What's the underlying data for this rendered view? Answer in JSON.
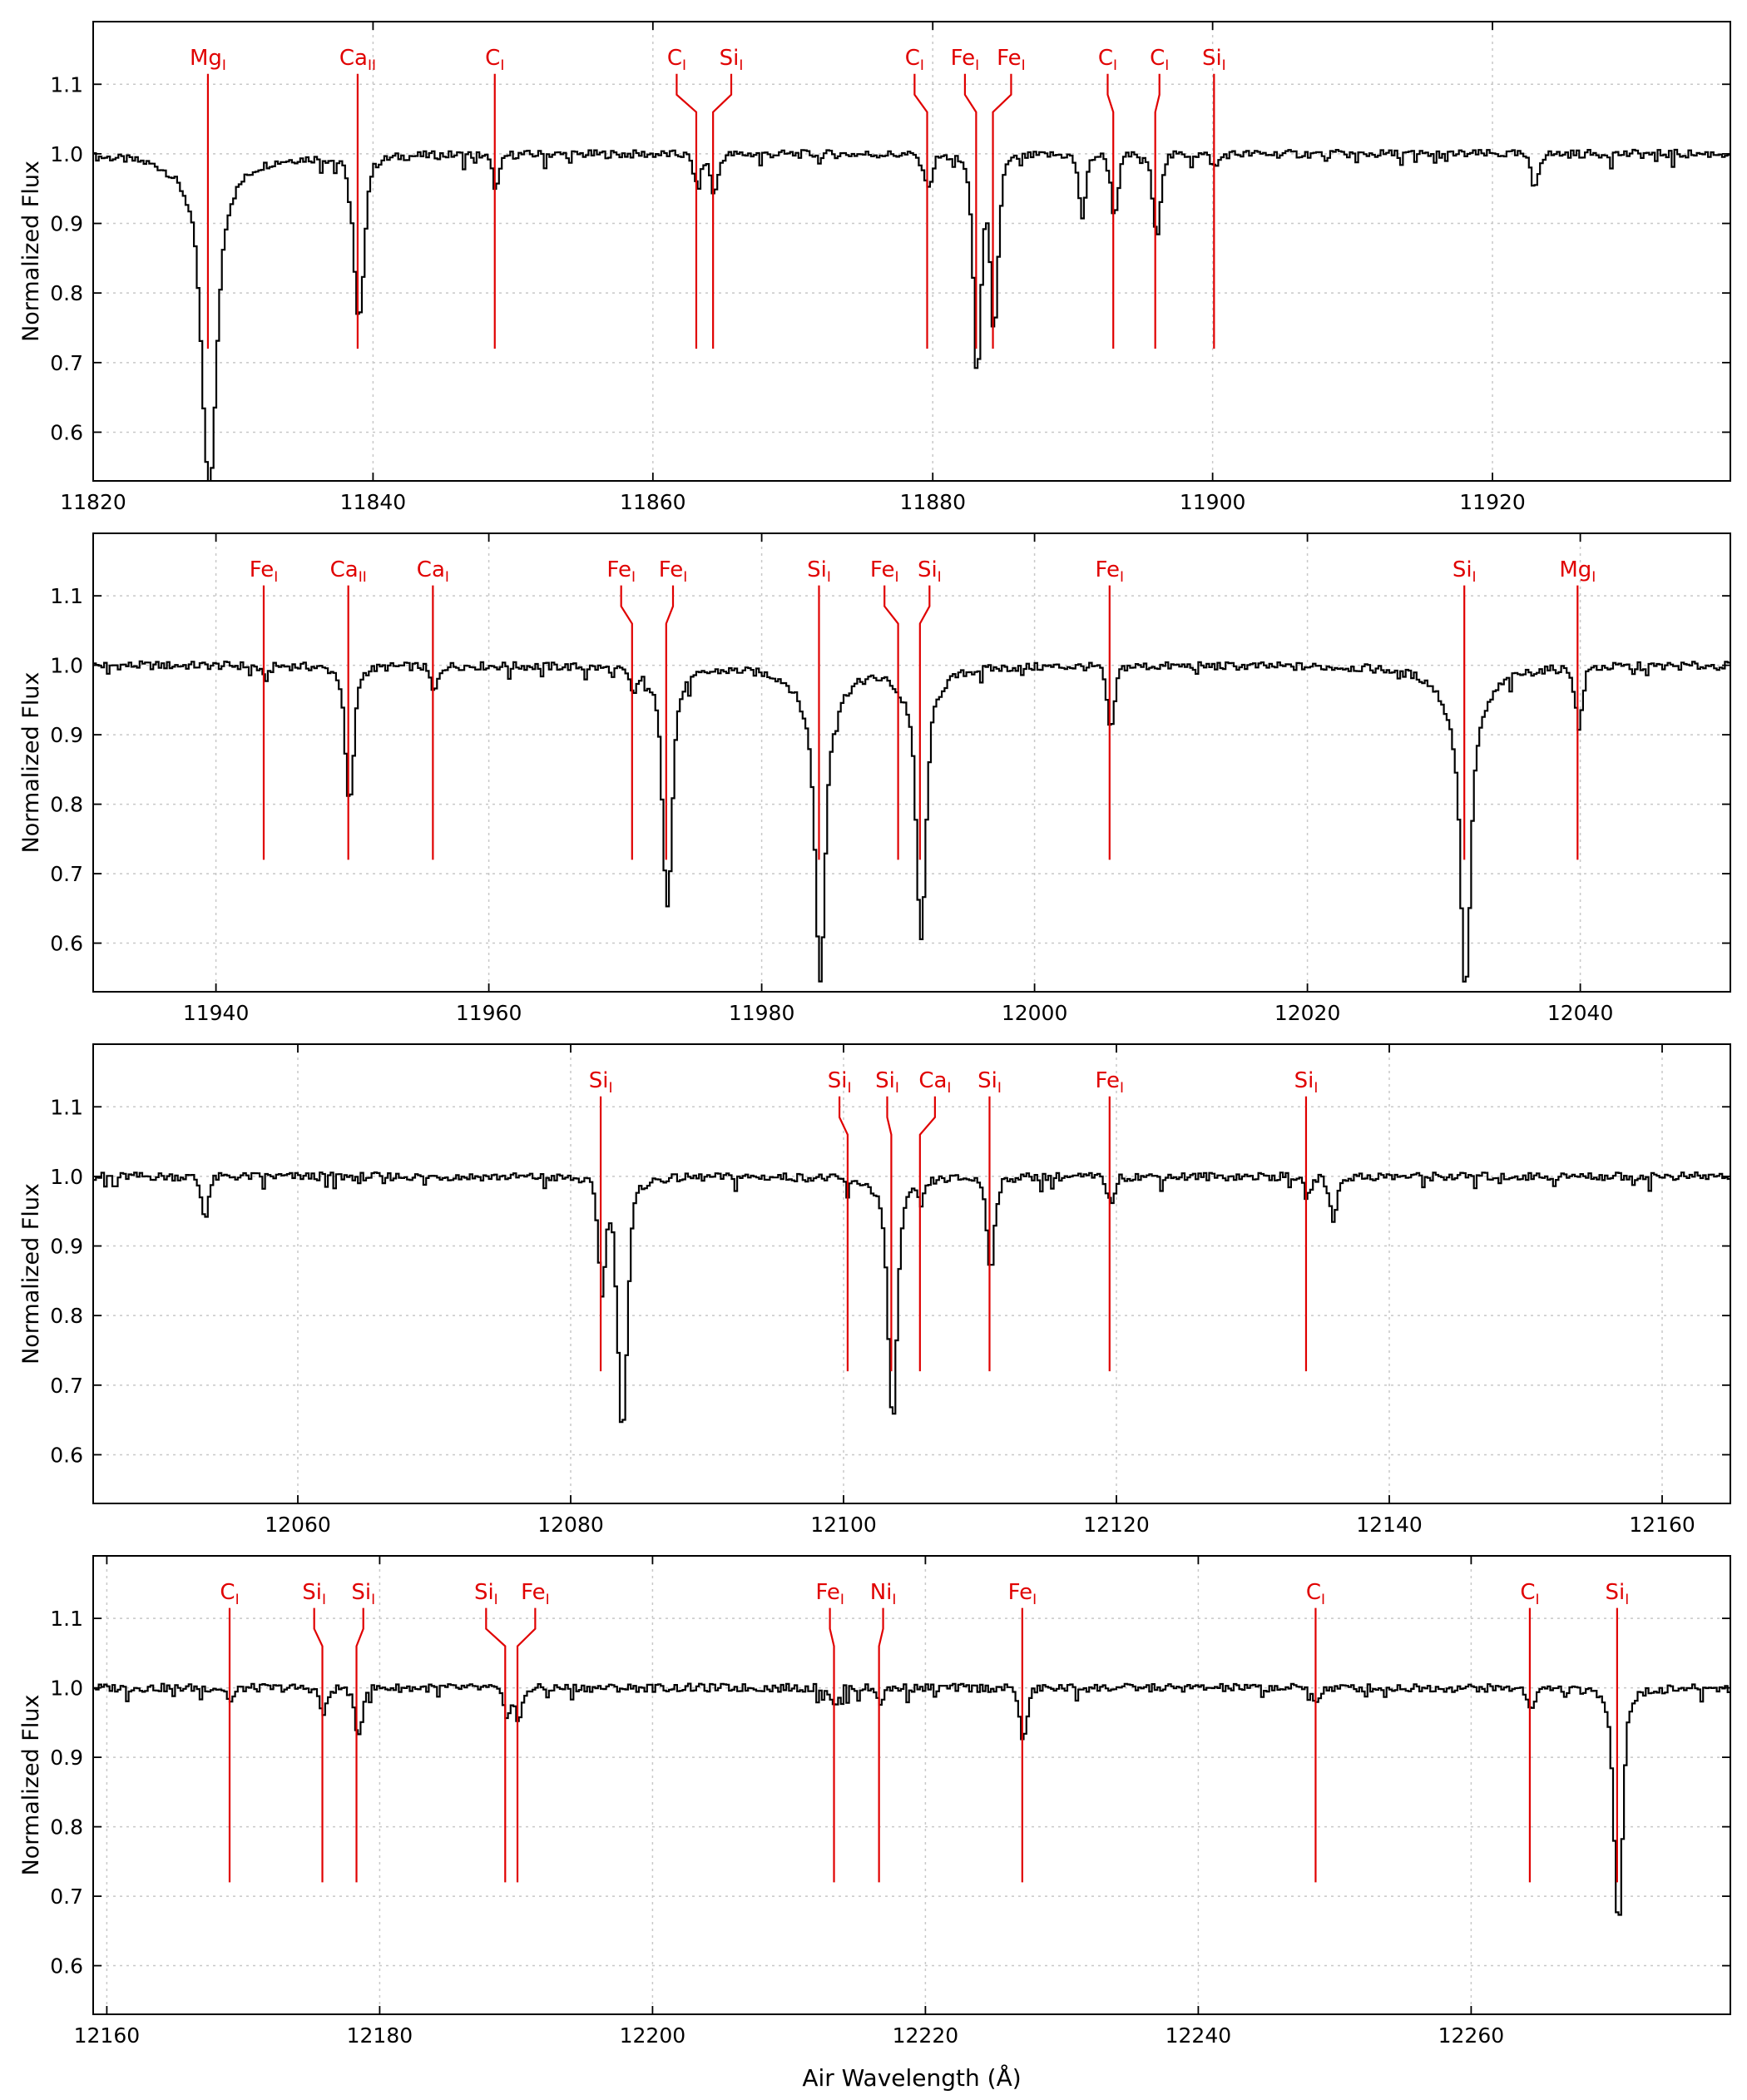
{
  "figure": {
    "xlabel": "Air Wavelength (Å)",
    "ylabel": "Normalized Flux",
    "colors": {
      "spectrum": "#000000",
      "line_marker": "#e00000",
      "grid": "#c8c8c8"
    }
  },
  "chart_data": [
    {
      "type": "line",
      "title": "",
      "xlabel": "",
      "ylabel": "Normalized Flux",
      "xlim": [
        11820,
        11937
      ],
      "ylim": [
        0.53,
        1.19
      ],
      "xticks": [
        11820,
        11840,
        11860,
        11880,
        11900,
        11920
      ],
      "yticks": [
        0.6,
        0.7,
        0.8,
        0.9,
        1.0,
        1.1
      ],
      "absorption_features": [
        {
          "center": 11828.2,
          "depth": 0.48,
          "sigma": 0.45,
          "gamma": 1.2
        },
        {
          "center": 11838.9,
          "depth": 0.24,
          "sigma": 0.35,
          "gamma": 0.5
        },
        {
          "center": 11848.7,
          "depth": 0.05,
          "sigma": 0.3,
          "gamma": 0.2
        },
        {
          "center": 11863.1,
          "depth": 0.05,
          "sigma": 0.3,
          "gamma": 0.2
        },
        {
          "center": 11864.3,
          "depth": 0.06,
          "sigma": 0.3,
          "gamma": 0.2
        },
        {
          "center": 11879.6,
          "depth": 0.05,
          "sigma": 0.3,
          "gamma": 0.2
        },
        {
          "center": 11883.1,
          "depth": 0.3,
          "sigma": 0.3,
          "gamma": 0.35
        },
        {
          "center": 11884.3,
          "depth": 0.24,
          "sigma": 0.3,
          "gamma": 0.35
        },
        {
          "center": 11890.6,
          "depth": 0.09,
          "sigma": 0.3,
          "gamma": 0.2
        },
        {
          "center": 11892.9,
          "depth": 0.09,
          "sigma": 0.3,
          "gamma": 0.2
        },
        {
          "center": 11895.9,
          "depth": 0.12,
          "sigma": 0.3,
          "gamma": 0.25
        },
        {
          "center": 11900.1,
          "depth": 0.02,
          "sigma": 0.3,
          "gamma": 0.2
        },
        {
          "center": 11922.9,
          "depth": 0.05,
          "sigma": 0.3,
          "gamma": 0.2
        }
      ],
      "line_ids": [
        {
          "element": "Mg",
          "ion": "I",
          "wavelength": 11828.2,
          "label_x": 11828.2
        },
        {
          "element": "Ca",
          "ion": "II",
          "wavelength": 11838.9,
          "label_x": 11838.9
        },
        {
          "element": "C",
          "ion": "I",
          "wavelength": 11848.7,
          "label_x": 11848.7
        },
        {
          "element": "C",
          "ion": "I",
          "wavelength": 11863.1,
          "label_x": 11861.7
        },
        {
          "element": "Si",
          "ion": "I",
          "wavelength": 11864.3,
          "label_x": 11865.6
        },
        {
          "element": "C",
          "ion": "I",
          "wavelength": 11879.6,
          "label_x": 11878.7
        },
        {
          "element": "Fe",
          "ion": "I",
          "wavelength": 11883.1,
          "label_x": 11882.3
        },
        {
          "element": "Fe",
          "ion": "I",
          "wavelength": 11884.3,
          "label_x": 11885.6
        },
        {
          "element": "C",
          "ion": "I",
          "wavelength": 11892.9,
          "label_x": 11892.5
        },
        {
          "element": "C",
          "ion": "I",
          "wavelength": 11895.9,
          "label_x": 11896.2
        },
        {
          "element": "Si",
          "ion": "I",
          "wavelength": 11900.1,
          "label_x": 11900.1
        }
      ]
    },
    {
      "type": "line",
      "title": "",
      "xlabel": "",
      "ylabel": "Normalized Flux",
      "xlim": [
        11931,
        12051
      ],
      "ylim": [
        0.53,
        1.19
      ],
      "xticks": [
        11940,
        11960,
        11980,
        12000,
        12020,
        12040
      ],
      "yticks": [
        0.6,
        0.7,
        0.8,
        0.9,
        1.0,
        1.1
      ],
      "absorption_features": [
        {
          "center": 11943.5,
          "depth": 0.02,
          "sigma": 0.3,
          "gamma": 0.2
        },
        {
          "center": 11949.7,
          "depth": 0.2,
          "sigma": 0.3,
          "gamma": 0.45
        },
        {
          "center": 11955.9,
          "depth": 0.04,
          "sigma": 0.3,
          "gamma": 0.2
        },
        {
          "center": 11970.5,
          "depth": 0.03,
          "sigma": 0.3,
          "gamma": 0.2
        },
        {
          "center": 11973.0,
          "depth": 0.34,
          "sigma": 0.3,
          "gamma": 0.7
        },
        {
          "center": 11984.2,
          "depth": 0.45,
          "sigma": 0.3,
          "gamma": 1.0
        },
        {
          "center": 11990.0,
          "depth": 0.01,
          "sigma": 0.3,
          "gamma": 0.2
        },
        {
          "center": 11991.6,
          "depth": 0.39,
          "sigma": 0.3,
          "gamma": 0.8
        },
        {
          "center": 12005.5,
          "depth": 0.1,
          "sigma": 0.3,
          "gamma": 0.2
        },
        {
          "center": 12031.5,
          "depth": 0.47,
          "sigma": 0.3,
          "gamma": 1.1
        },
        {
          "center": 12039.8,
          "depth": 0.09,
          "sigma": 0.3,
          "gamma": 0.2
        }
      ],
      "line_ids": [
        {
          "element": "Fe",
          "ion": "I",
          "wavelength": 11943.5,
          "label_x": 11943.5
        },
        {
          "element": "Ca",
          "ion": "II",
          "wavelength": 11949.7,
          "label_x": 11949.7
        },
        {
          "element": "Ca",
          "ion": "I",
          "wavelength": 11955.9,
          "label_x": 11955.9
        },
        {
          "element": "Fe",
          "ion": "I",
          "wavelength": 11970.5,
          "label_x": 11969.7
        },
        {
          "element": "Fe",
          "ion": "I",
          "wavelength": 11973.0,
          "label_x": 11973.5
        },
        {
          "element": "Si",
          "ion": "I",
          "wavelength": 11984.2,
          "label_x": 11984.2
        },
        {
          "element": "Fe",
          "ion": "I",
          "wavelength": 11990.0,
          "label_x": 11989.0
        },
        {
          "element": "Si",
          "ion": "I",
          "wavelength": 11991.6,
          "label_x": 11992.3
        },
        {
          "element": "Fe",
          "ion": "I",
          "wavelength": 12005.5,
          "label_x": 12005.5
        },
        {
          "element": "Si",
          "ion": "I",
          "wavelength": 12031.5,
          "label_x": 12031.5
        },
        {
          "element": "Mg",
          "ion": "I",
          "wavelength": 12039.8,
          "label_x": 12039.8
        }
      ]
    },
    {
      "type": "line",
      "title": "",
      "xlabel": "",
      "ylabel": "Normalized Flux",
      "xlim": [
        12045,
        12165
      ],
      "ylim": [
        0.53,
        1.19
      ],
      "xticks": [
        12060,
        12080,
        12100,
        12120,
        12140,
        12160
      ],
      "yticks": [
        0.6,
        0.7,
        0.8,
        0.9,
        1.0,
        1.1
      ],
      "absorption_features": [
        {
          "center": 12053.1,
          "depth": 0.06,
          "sigma": 0.3,
          "gamma": 0.2
        },
        {
          "center": 12082.2,
          "depth": 0.16,
          "sigma": 0.3,
          "gamma": 0.2
        },
        {
          "center": 12083.7,
          "depth": 0.36,
          "sigma": 0.35,
          "gamma": 0.5
        },
        {
          "center": 12100.3,
          "depth": 0.01,
          "sigma": 0.3,
          "gamma": 0.2
        },
        {
          "center": 12103.5,
          "depth": 0.35,
          "sigma": 0.3,
          "gamma": 0.6
        },
        {
          "center": 12105.6,
          "depth": 0.03,
          "sigma": 0.3,
          "gamma": 0.2
        },
        {
          "center": 12110.7,
          "depth": 0.13,
          "sigma": 0.3,
          "gamma": 0.3
        },
        {
          "center": 12119.5,
          "depth": 0.04,
          "sigma": 0.3,
          "gamma": 0.2
        },
        {
          "center": 12133.9,
          "depth": 0.03,
          "sigma": 0.3,
          "gamma": 0.2
        },
        {
          "center": 12135.8,
          "depth": 0.06,
          "sigma": 0.3,
          "gamma": 0.3
        }
      ],
      "line_ids": [
        {
          "element": "Si",
          "ion": "I",
          "wavelength": 12082.2,
          "label_x": 12082.2
        },
        {
          "element": "Si",
          "ion": "I",
          "wavelength": 12100.3,
          "label_x": 12099.7
        },
        {
          "element": "Si",
          "ion": "I",
          "wavelength": 12103.5,
          "label_x": 12103.2
        },
        {
          "element": "Ca",
          "ion": "I",
          "wavelength": 12105.6,
          "label_x": 12106.7
        },
        {
          "element": "Si",
          "ion": "I",
          "wavelength": 12110.7,
          "label_x": 12110.7
        },
        {
          "element": "Fe",
          "ion": "I",
          "wavelength": 12119.5,
          "label_x": 12119.5
        },
        {
          "element": "Si",
          "ion": "I",
          "wavelength": 12133.9,
          "label_x": 12133.9
        }
      ]
    },
    {
      "type": "line",
      "title": "",
      "xlabel": "Air Wavelength (Å)",
      "ylabel": "Normalized Flux",
      "xlim": [
        12159,
        12279
      ],
      "ylim": [
        0.53,
        1.19
      ],
      "xticks": [
        12160,
        12180,
        12200,
        12220,
        12240,
        12260
      ],
      "yticks": [
        0.6,
        0.7,
        0.8,
        0.9,
        1.0,
        1.1
      ],
      "absorption_features": [
        {
          "center": 12169.0,
          "depth": 0.02,
          "sigma": 0.3,
          "gamma": 0.2
        },
        {
          "center": 12175.8,
          "depth": 0.04,
          "sigma": 0.3,
          "gamma": 0.2
        },
        {
          "center": 12178.3,
          "depth": 0.07,
          "sigma": 0.3,
          "gamma": 0.2
        },
        {
          "center": 12189.2,
          "depth": 0.04,
          "sigma": 0.3,
          "gamma": 0.2
        },
        {
          "center": 12190.1,
          "depth": 0.05,
          "sigma": 0.3,
          "gamma": 0.2
        },
        {
          "center": 12213.3,
          "depth": 0.03,
          "sigma": 0.3,
          "gamma": 0.2
        },
        {
          "center": 12216.6,
          "depth": 0.02,
          "sigma": 0.3,
          "gamma": 0.2
        },
        {
          "center": 12227.1,
          "depth": 0.08,
          "sigma": 0.3,
          "gamma": 0.2
        },
        {
          "center": 12248.6,
          "depth": 0.02,
          "sigma": 0.3,
          "gamma": 0.2
        },
        {
          "center": 12264.3,
          "depth": 0.03,
          "sigma": 0.3,
          "gamma": 0.2
        },
        {
          "center": 12270.7,
          "depth": 0.34,
          "sigma": 0.3,
          "gamma": 0.45
        }
      ],
      "line_ids": [
        {
          "element": "C",
          "ion": "I",
          "wavelength": 12169.0,
          "label_x": 12169.0
        },
        {
          "element": "Si",
          "ion": "I",
          "wavelength": 12175.8,
          "label_x": 12175.2
        },
        {
          "element": "Si",
          "ion": "I",
          "wavelength": 12178.3,
          "label_x": 12178.8
        },
        {
          "element": "Si",
          "ion": "I",
          "wavelength": 12189.2,
          "label_x": 12187.8
        },
        {
          "element": "Fe",
          "ion": "I",
          "wavelength": 12190.1,
          "label_x": 12191.4
        },
        {
          "element": "Fe",
          "ion": "I",
          "wavelength": 12213.3,
          "label_x": 12213.0
        },
        {
          "element": "Ni",
          "ion": "I",
          "wavelength": 12216.6,
          "label_x": 12216.9
        },
        {
          "element": "Fe",
          "ion": "I",
          "wavelength": 12227.1,
          "label_x": 12227.1
        },
        {
          "element": "C",
          "ion": "I",
          "wavelength": 12248.6,
          "label_x": 12248.6
        },
        {
          "element": "C",
          "ion": "I",
          "wavelength": 12264.3,
          "label_x": 12264.3
        },
        {
          "element": "Si",
          "ion": "I",
          "wavelength": 12270.7,
          "label_x": 12270.7
        }
      ]
    }
  ]
}
